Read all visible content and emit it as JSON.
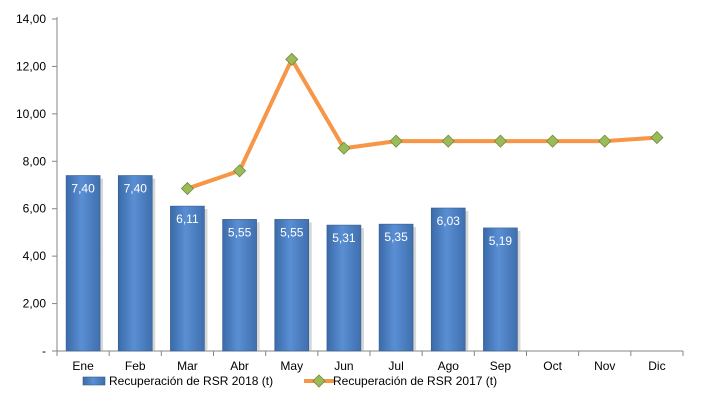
{
  "chart_data": {
    "type": "bar+line",
    "categories": [
      "Ene",
      "Feb",
      "Mar",
      "Abr",
      "May",
      "Jun",
      "Jul",
      "Ago",
      "Sep",
      "Oct",
      "Nov",
      "Dic"
    ],
    "y_ticks": [
      "-",
      "2,00",
      "4,00",
      "6,00",
      "8,00",
      "10,00",
      "12,00",
      "14,00"
    ],
    "ylim": [
      0,
      14
    ],
    "grid": false,
    "legend_position": "bottom",
    "series": [
      {
        "name": "Recuperación de RSR 2018 (t)",
        "type": "bar",
        "color": "#4f81bd",
        "values": [
          7.4,
          7.4,
          6.11,
          5.55,
          5.55,
          5.31,
          5.35,
          6.03,
          5.19,
          null,
          null,
          null
        ],
        "labels": [
          "7,40",
          "7,40",
          "6,11",
          "5,55",
          "5,55",
          "5,31",
          "5,35",
          "6,03",
          "5,19",
          "",
          "",
          ""
        ]
      },
      {
        "name": "Recuperación de RSR 2017 (t)",
        "type": "line",
        "color": "#f79646",
        "marker_color": "#9bbb59",
        "values": [
          null,
          null,
          6.85,
          7.6,
          12.3,
          8.55,
          8.85,
          8.85,
          8.85,
          8.85,
          8.85,
          9.0
        ]
      }
    ]
  }
}
